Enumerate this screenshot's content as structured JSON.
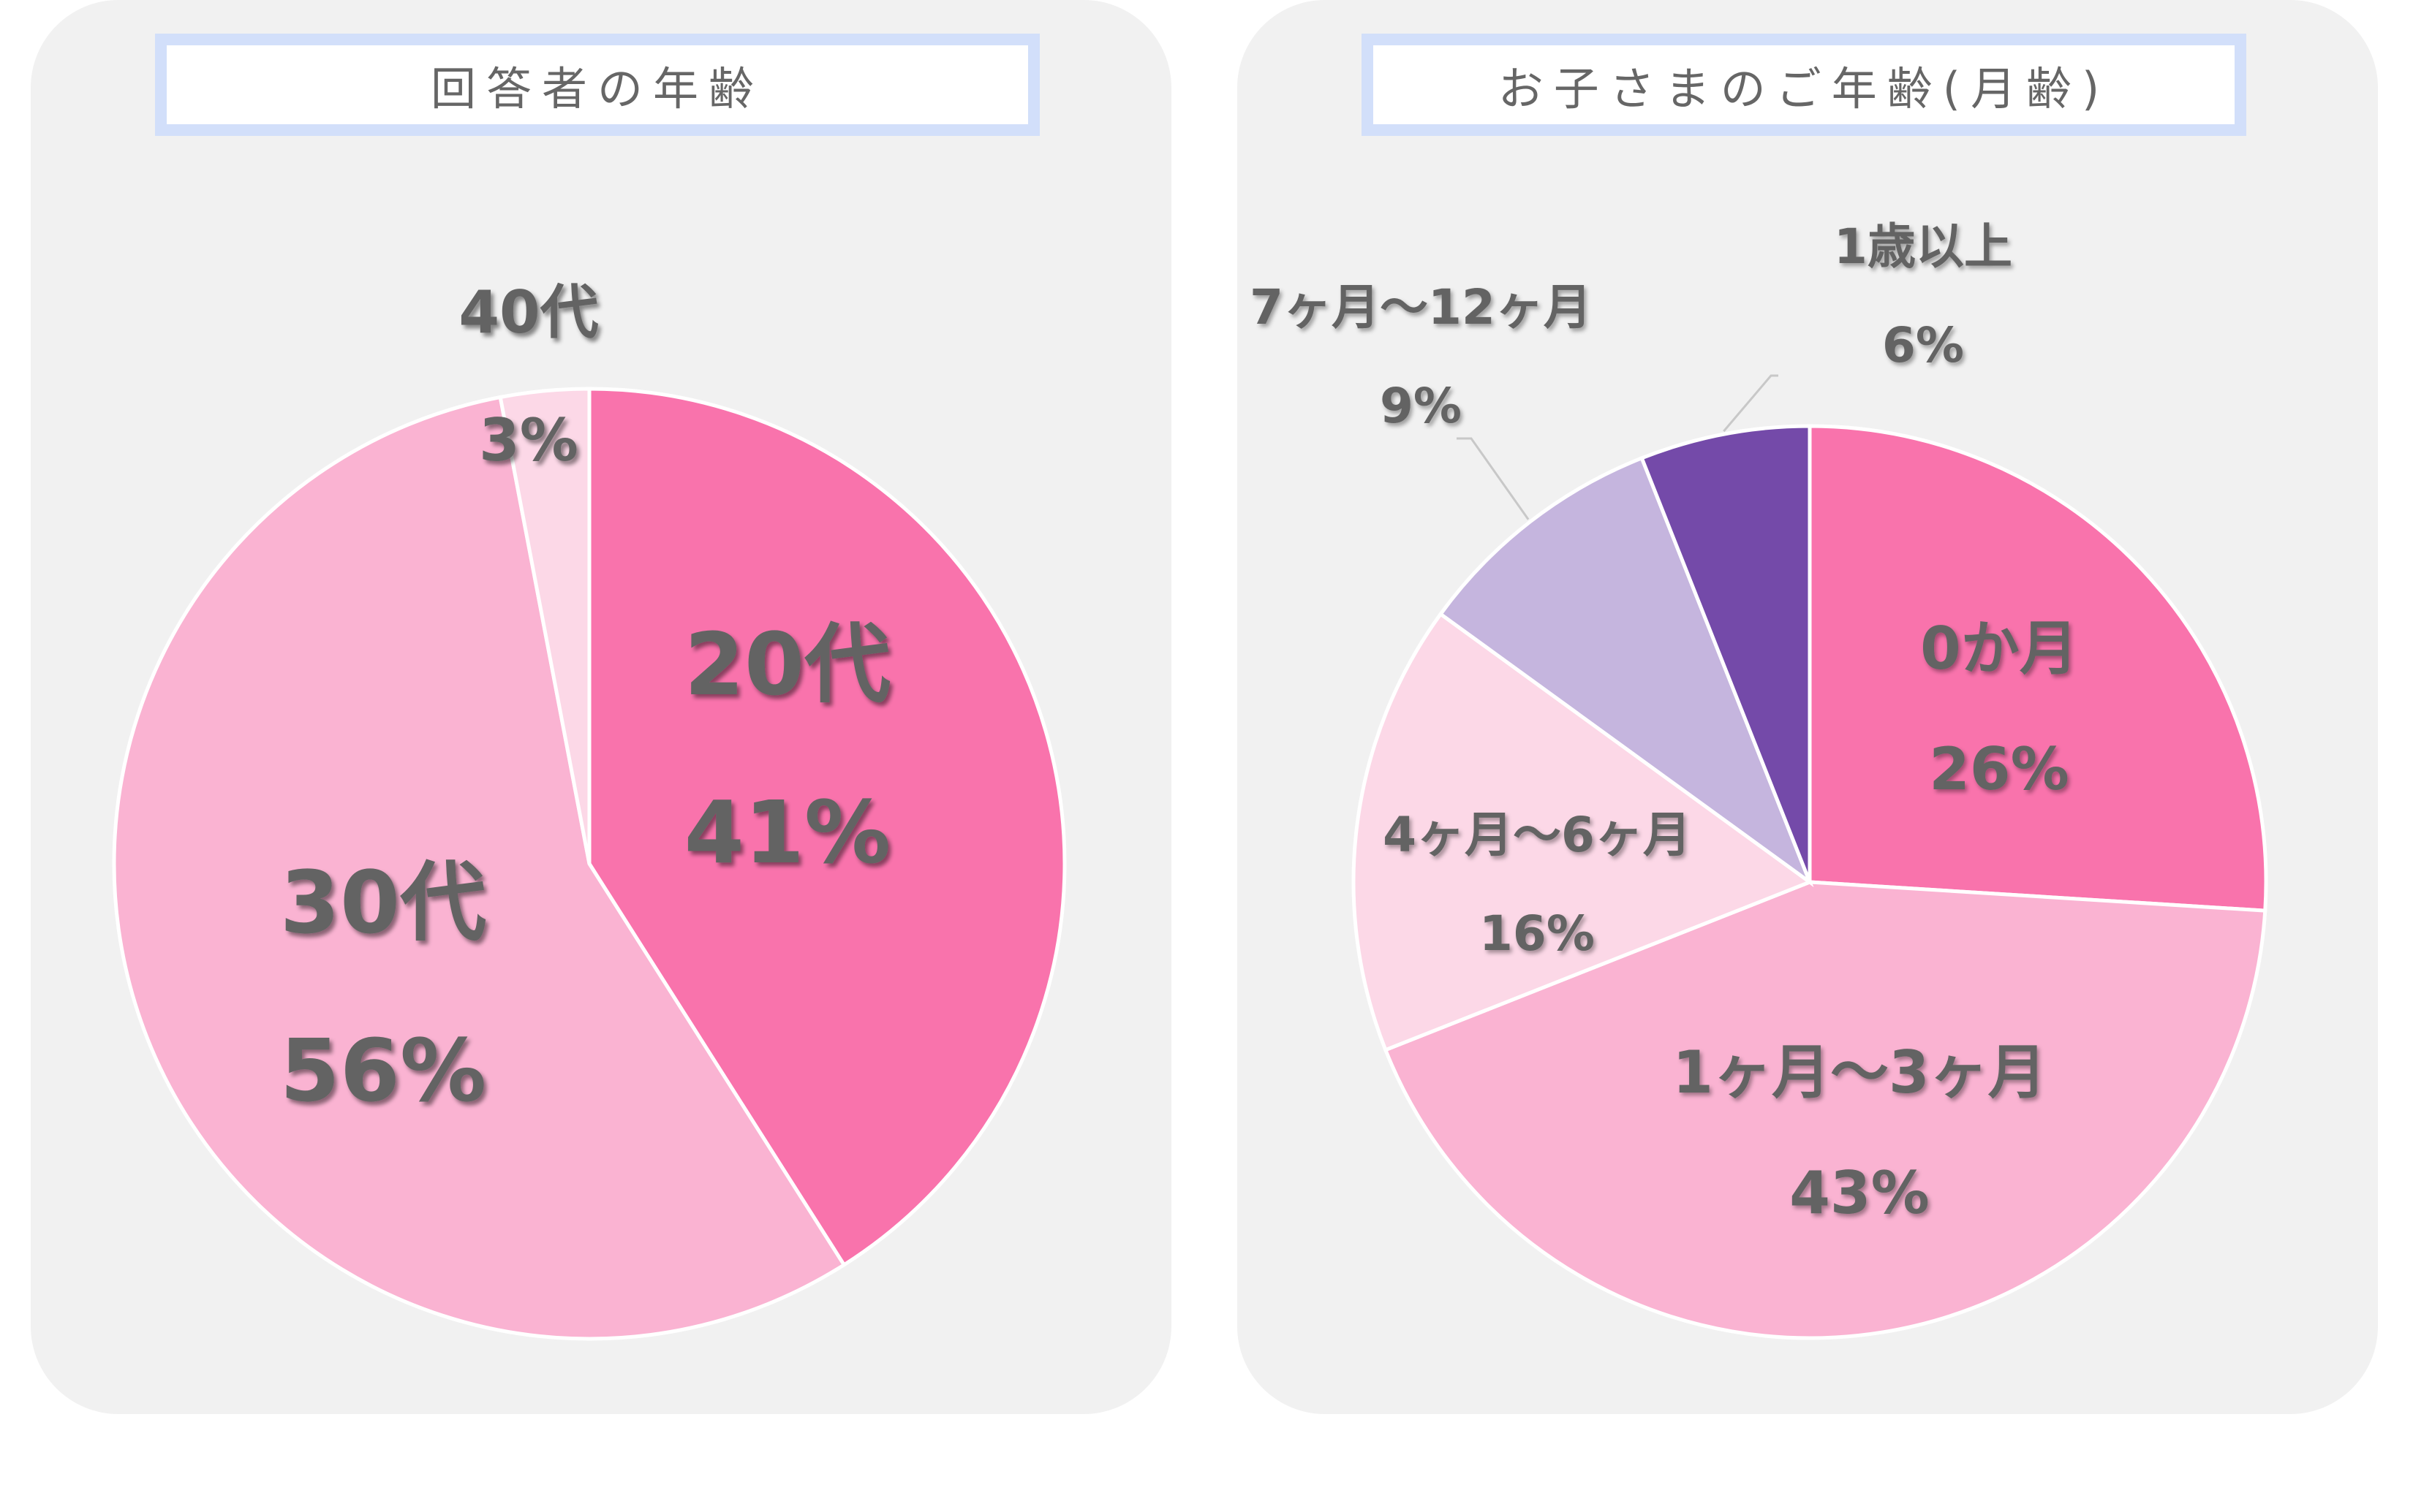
{
  "charts": [
    {
      "title": "回答者の年齢",
      "chart_data": {
        "type": "pie",
        "title": "回答者の年齢",
        "categories": [
          "20代",
          "30代",
          "40代"
        ],
        "values": [
          41,
          56,
          3
        ],
        "percent_labels": [
          "41%",
          "56%",
          "3%"
        ],
        "colors": [
          "#f973ac",
          "#fab3d2",
          "#fcd8e7"
        ],
        "start": "12 o'clock, clockwise"
      }
    },
    {
      "title": "お子さまのご年齢(月齢)",
      "chart_data": {
        "type": "pie",
        "title": "お子さまのご年齢(月齢)",
        "categories": [
          "0か月",
          "1ヶ月〜3ヶ月",
          "4ヶ月〜6ヶ月",
          "7ヶ月〜12ヶ月",
          "1歳以上"
        ],
        "values": [
          26,
          43,
          16,
          9,
          6
        ],
        "percent_labels": [
          "26%",
          "43%",
          "16%",
          "9%",
          "6%"
        ],
        "colors": [
          "#f973ac",
          "#fab3d2",
          "#fcd8e7",
          "#c5b5de",
          "#744aa9"
        ],
        "start": "12 o'clock, clockwise"
      }
    }
  ]
}
